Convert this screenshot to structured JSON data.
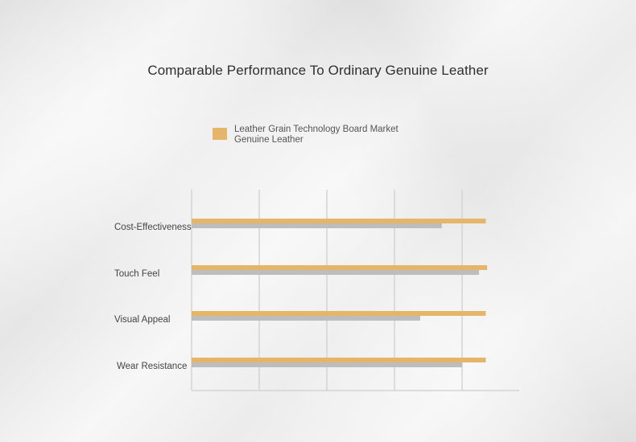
{
  "chart_data": {
    "type": "bar",
    "orientation": "horizontal",
    "title": "Comparable Performance To Ordinary Genuine Leather",
    "categories": [
      "Cost-Effectiveness",
      "Touch Feel",
      "Visual Appeal",
      "Wear Resistance"
    ],
    "series": [
      {
        "name": "Leather Grain Technology Board Market",
        "color": "#e5b56a",
        "values": [
          4.35,
          4.37,
          4.35,
          4.35
        ]
      },
      {
        "name": "Genuine Leather",
        "color": "#bdbdbd",
        "values": [
          3.7,
          4.25,
          3.38,
          4.0
        ]
      }
    ],
    "xlim": [
      0,
      5
    ],
    "grid": true,
    "legend_position": "top"
  }
}
